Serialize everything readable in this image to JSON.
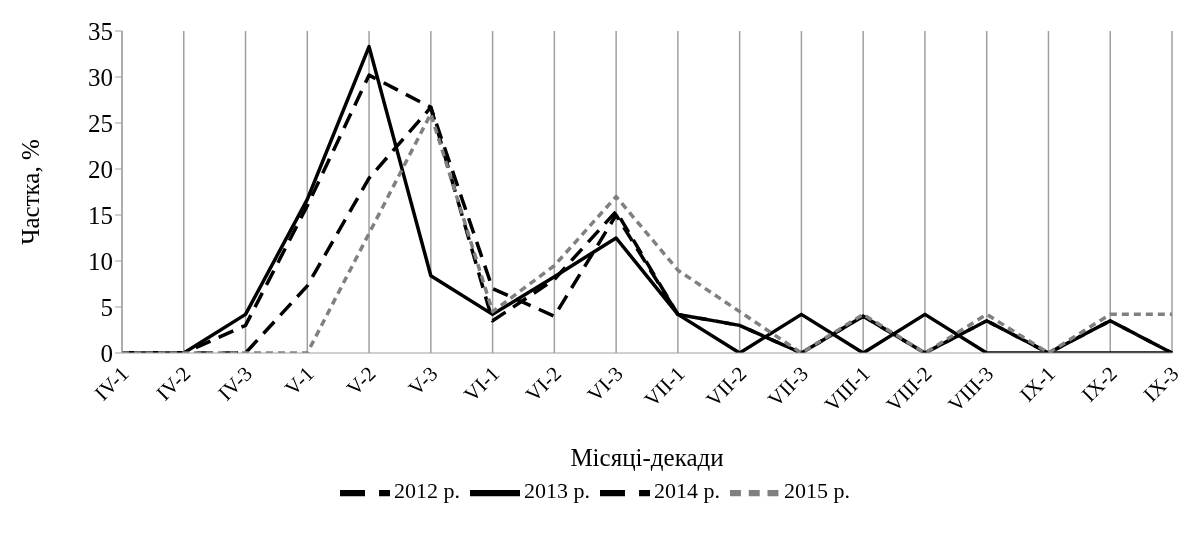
{
  "chart_data": {
    "type": "line",
    "xlabel": "Місяці-декади",
    "ylabel": "Частка, %",
    "categories": [
      "IV-1",
      "IV-2",
      "IV-3",
      "V-1",
      "V-2",
      "V-3",
      "VI-1",
      "VI-2",
      "VI-3",
      "VII-1",
      "VII-2",
      "VII-3",
      "VIII-1",
      "VIII-2",
      "VIII-3",
      "IX-1",
      "IX-2",
      "IX-3"
    ],
    "series": [
      {
        "name": "2012 р.",
        "color": "#000000",
        "line_style": "dashed",
        "values": [
          0,
          0,
          3,
          16,
          30.2,
          26.7,
          3.5,
          8,
          15.4,
          4.2,
          3,
          0,
          4,
          0,
          3.5,
          0,
          3.5,
          0
        ]
      },
      {
        "name": "2013 р.",
        "color": "#000000",
        "line_style": "solid",
        "values": [
          0,
          0,
          4.2,
          16.7,
          33.3,
          8.4,
          4.2,
          8.3,
          12.5,
          4.2,
          0,
          4.2,
          0,
          4.2,
          0,
          0,
          0,
          0
        ]
      },
      {
        "name": "2014 р.",
        "color": "#000000",
        "line_style": "dashed",
        "values": [
          0,
          0,
          0,
          7.3,
          19,
          26.7,
          7,
          4,
          15,
          4.2,
          3,
          0,
          4,
          0,
          3.5,
          0,
          3.5,
          0
        ]
      },
      {
        "name": "2015 р.",
        "color": "#808080",
        "line_style": "dashed",
        "values": [
          0,
          0,
          0,
          0,
          13,
          26,
          4.5,
          9.5,
          17,
          9,
          4.5,
          0,
          4.2,
          0,
          4.2,
          0,
          4.2,
          4.2
        ]
      }
    ],
    "ylim": [
      0,
      35
    ],
    "yticks": [
      0,
      5,
      10,
      15,
      20,
      25,
      30,
      35
    ],
    "grid": "x",
    "legend": "bottom",
    "marker": "none"
  }
}
